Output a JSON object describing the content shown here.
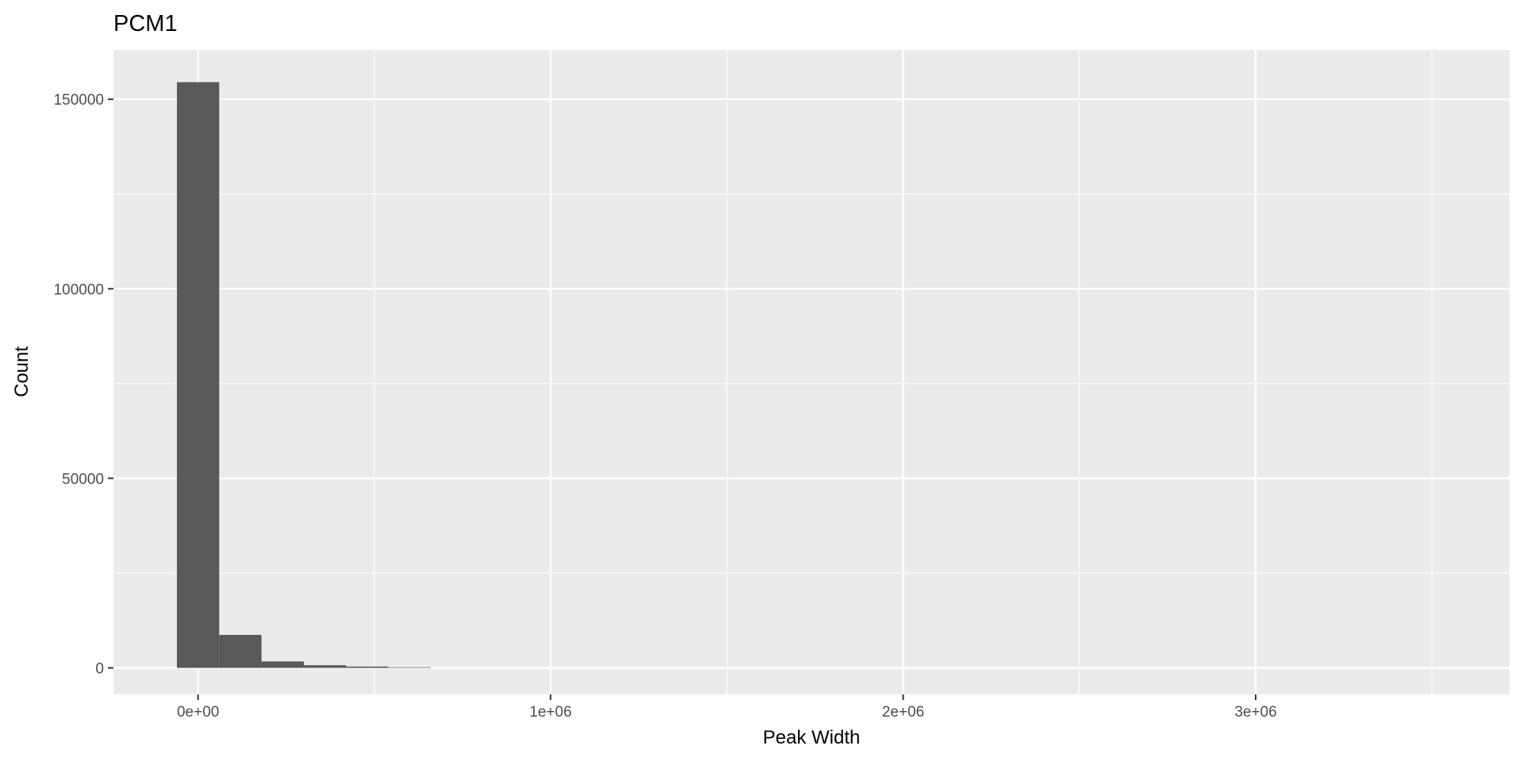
{
  "chart_data": {
    "type": "bar",
    "title": "PCM1",
    "xlabel": "Peak Width",
    "ylabel": "Count",
    "xlim": [
      -240000,
      3720000
    ],
    "ylim": [
      -7000,
      163000
    ],
    "x_ticks": [
      0,
      1000000,
      2000000,
      3000000
    ],
    "x_tick_labels": [
      "0e+00",
      "1e+06",
      "2e+06",
      "3e+06"
    ],
    "x_minor_ticks": [
      500000,
      1500000,
      2500000,
      3500000
    ],
    "y_ticks": [
      0,
      50000,
      100000,
      150000
    ],
    "y_tick_labels": [
      "0",
      "50000",
      "100000",
      "150000"
    ],
    "y_minor_ticks": [
      25000,
      75000,
      125000
    ],
    "bin_width": 120000,
    "bins": [
      {
        "x": 0,
        "count": 154500
      },
      {
        "x": 120000,
        "count": 8700
      },
      {
        "x": 240000,
        "count": 1700
      },
      {
        "x": 360000,
        "count": 700
      },
      {
        "x": 480000,
        "count": 350
      },
      {
        "x": 600000,
        "count": 150
      }
    ],
    "grid": true,
    "panel_background": "#ebebeb",
    "bar_color": "#595959",
    "grid_color": "#ffffff"
  }
}
